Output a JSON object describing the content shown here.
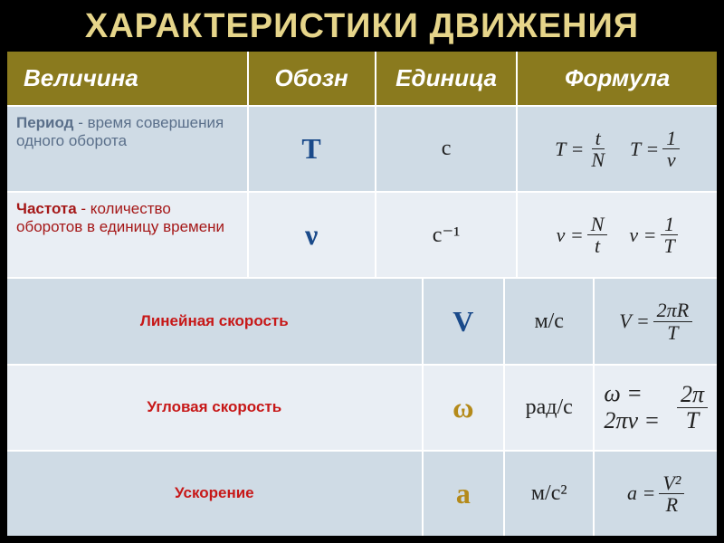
{
  "title": "ХАРАКТЕРИСТИКИ ДВИЖЕНИЯ",
  "headers": {
    "name": "Величина",
    "symbol": "Обозн",
    "unit": "Единица",
    "formula": "Формула"
  },
  "rows": [
    {
      "name_bold": "Период",
      "name_rest": " - время совершения одного оборота",
      "name_color": "#5a6f8a",
      "symbol": "T",
      "symbol_color": "#1a4a8a",
      "unit_html": "с",
      "formulas": [
        {
          "lhs": "T",
          "num": "t",
          "den": "N"
        },
        {
          "lhs": "T",
          "num": "1",
          "den": "ν"
        }
      ],
      "row_bg": "row-even"
    },
    {
      "name_bold": "Частота",
      "name_rest": " - количество оборотов в единицу времени",
      "name_color": "#a51818",
      "symbol": "ν",
      "symbol_color": "#1a4a8a",
      "unit_html": "с⁻¹",
      "formulas": [
        {
          "lhs": "ν",
          "num": "N",
          "den": "t"
        },
        {
          "lhs": "ν",
          "num": "1",
          "den": "T"
        }
      ],
      "row_bg": "row-odd"
    },
    {
      "name_bold": "Линейная  скорость",
      "name_rest": "",
      "name_color": "#c71818",
      "name_center": true,
      "symbol": "V",
      "symbol_color": "#1a4a8a",
      "unit_html": "м/с",
      "formulas": [
        {
          "lhs": "V",
          "num": "2πR",
          "den": "T"
        }
      ],
      "row_bg": "row-even"
    },
    {
      "name_bold": "Угловая  скорость",
      "name_rest": "",
      "name_color": "#c71818",
      "name_center": true,
      "symbol": "ω",
      "symbol_color": "#b48a1a",
      "unit_html": "рад/с",
      "formula_custom": "omega",
      "row_bg": "row-odd"
    },
    {
      "name_bold": "Ускорение",
      "name_rest": "",
      "name_color": "#c71818",
      "name_center": true,
      "symbol": "a",
      "symbol_color": "#b48a1a",
      "unit_html": "м/с²",
      "formulas": [
        {
          "lhs": "a",
          "num": "V²",
          "den": "R"
        }
      ],
      "row_bg": "row-even"
    }
  ]
}
